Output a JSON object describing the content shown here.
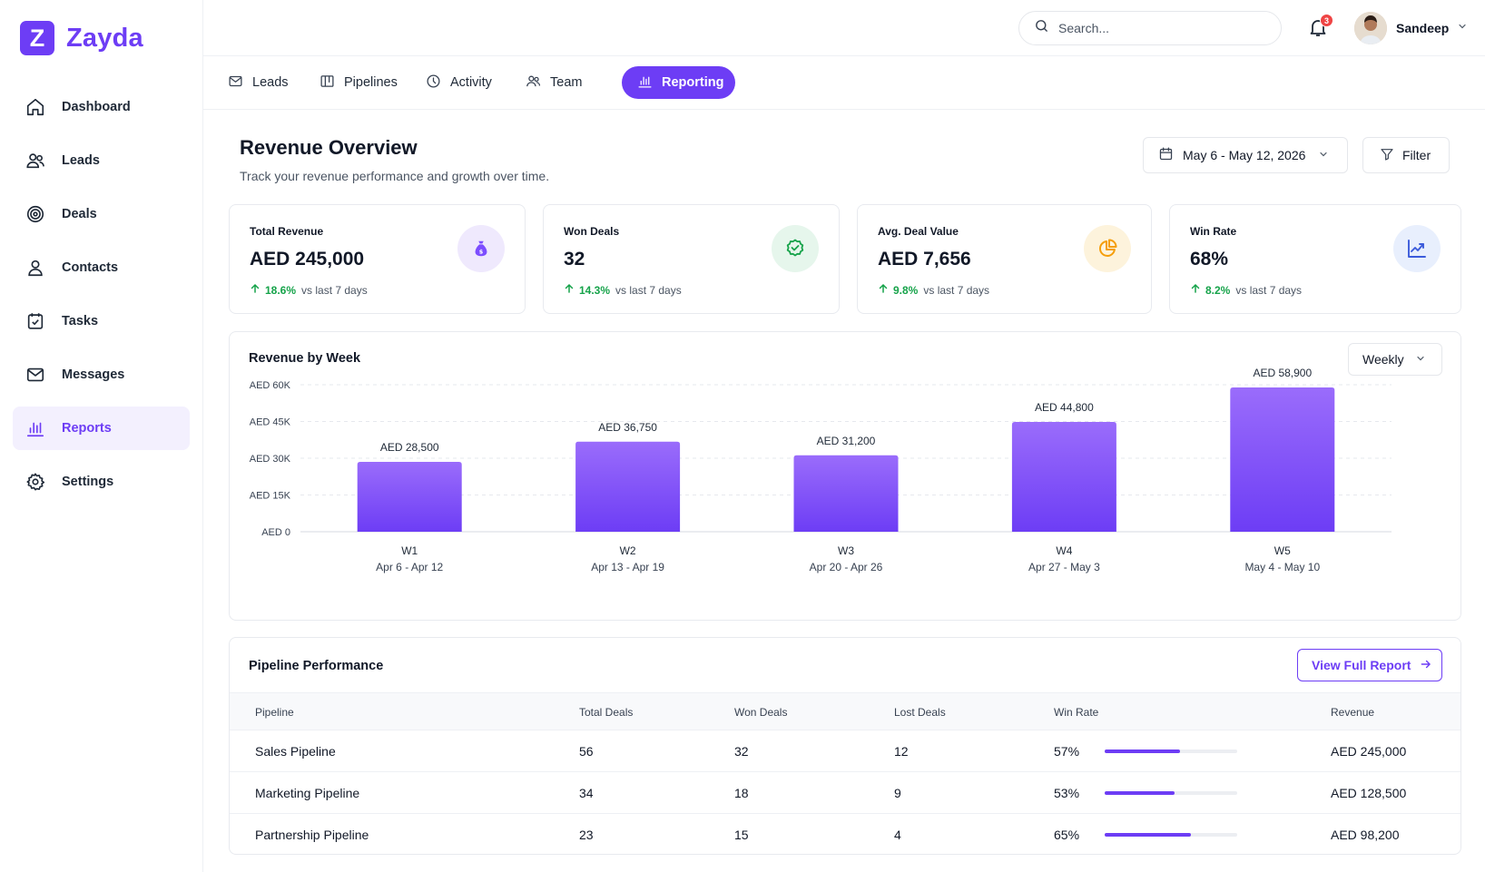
{
  "brand": {
    "name": "Zayda",
    "initial": "Z"
  },
  "sidebar": {
    "items": [
      {
        "label": "Dashboard",
        "icon": "home-icon"
      },
      {
        "label": "Leads",
        "icon": "users-icon"
      },
      {
        "label": "Deals",
        "icon": "target-icon"
      },
      {
        "label": "Contacts",
        "icon": "user-icon"
      },
      {
        "label": "Tasks",
        "icon": "calendar-check-icon"
      },
      {
        "label": "Messages",
        "icon": "mail-icon"
      },
      {
        "label": "Reports",
        "icon": "bar-chart-icon",
        "active": true
      },
      {
        "label": "Settings",
        "icon": "gear-icon"
      }
    ]
  },
  "topbar": {
    "search_placeholder": "Search...",
    "notification_count": "3",
    "user_name": "Sandeep"
  },
  "tabs": [
    {
      "label": "Leads",
      "icon": "mail-icon"
    },
    {
      "label": "Pipelines",
      "icon": "kanban-icon"
    },
    {
      "label": "Activity",
      "icon": "clock-icon"
    },
    {
      "label": "Team",
      "icon": "team-icon"
    },
    {
      "label": "Reporting",
      "icon": "bar-chart-icon",
      "active": true
    }
  ],
  "page": {
    "title": "Revenue Overview",
    "subtitle": "Track your revenue performance and growth over time.",
    "date_range": "May 6 - May 12, 2026",
    "filter_label": "Filter"
  },
  "kpis": [
    {
      "label": "Total Revenue",
      "value": "AED 245,000",
      "delta": "18.6%",
      "compare": "vs last 7 days",
      "icon": "money-bag-icon",
      "icon_bg": "#efe9fd",
      "icon_color": "#7c4dff"
    },
    {
      "label": "Won Deals",
      "value": "32",
      "delta": "14.3%",
      "compare": "vs last 7 days",
      "icon": "badge-check-icon",
      "icon_bg": "#e6f6ec",
      "icon_color": "#16a34a"
    },
    {
      "label": "Avg. Deal Value",
      "value": "AED 7,656",
      "delta": "9.8%",
      "compare": "vs last 7 days",
      "icon": "pie-chart-icon",
      "icon_bg": "#fdf3dc",
      "icon_color": "#f59e0b"
    },
    {
      "label": "Win Rate",
      "value": "68%",
      "delta": "8.2%",
      "compare": "vs last 7 days",
      "icon": "trend-up-icon",
      "icon_bg": "#e8effd",
      "icon_color": "#3b5bdb"
    }
  ],
  "chart_card": {
    "title": "Revenue by Week",
    "period": "Weekly"
  },
  "chart_data": {
    "type": "bar",
    "title": "Revenue by Week",
    "categories": [
      "W1",
      "W2",
      "W3",
      "W4",
      "W5"
    ],
    "category_ranges": [
      "Apr 6 - Apr 12",
      "Apr 13 - Apr 19",
      "Apr 20 - Apr 26",
      "Apr 27 - May 3",
      "May 4 - May 10"
    ],
    "values": [
      28500,
      36750,
      31200,
      44800,
      58900
    ],
    "data_labels": [
      "AED 28,500",
      "AED 36,750",
      "AED 31,200",
      "AED 44,800",
      "AED 58,900"
    ],
    "yticks": [
      0,
      15000,
      30000,
      45000,
      60000
    ],
    "ytick_labels": [
      "AED 0",
      "AED 15K",
      "AED 30K",
      "AED 45K",
      "AED 60K"
    ],
    "ylim": [
      0,
      60000
    ],
    "grid": true,
    "bar_color_top": "#9a6cfb",
    "bar_color_bottom": "#6d3df5"
  },
  "pipeline": {
    "title": "Pipeline Performance",
    "view_report_label": "View Full Report",
    "columns": [
      "Pipeline",
      "Total Deals",
      "Won Deals",
      "Lost Deals",
      "Win Rate",
      "Revenue"
    ],
    "rows": [
      {
        "name": "Sales Pipeline",
        "total": "56",
        "won": "32",
        "lost": "12",
        "win_rate": "57%",
        "win_rate_value": 0.57,
        "revenue": "AED 245,000"
      },
      {
        "name": "Marketing Pipeline",
        "total": "34",
        "won": "18",
        "lost": "9",
        "win_rate": "53%",
        "win_rate_value": 0.53,
        "revenue": "AED 128,500"
      },
      {
        "name": "Partnership Pipeline",
        "total": "23",
        "won": "15",
        "lost": "4",
        "win_rate": "65%",
        "win_rate_value": 0.65,
        "revenue": "AED 98,200"
      }
    ]
  },
  "colors": {
    "accent": "#6d3df5",
    "positive": "#16a34a",
    "alert": "#ef4444"
  }
}
